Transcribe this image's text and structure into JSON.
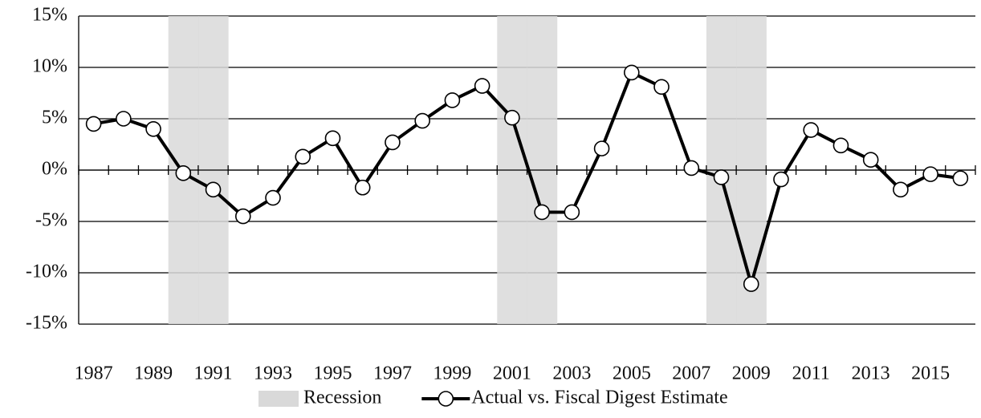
{
  "chart_data": {
    "type": "line",
    "categories": [
      "1987",
      null,
      "1989",
      null,
      "1991",
      null,
      "1993",
      null,
      "1995",
      null,
      "1997",
      null,
      "1999",
      null,
      "2001",
      null,
      "2003",
      null,
      "2005",
      null,
      "2007",
      null,
      "2009",
      null,
      "2011",
      null,
      "2013",
      null,
      "2015",
      null
    ],
    "series": [
      {
        "name": "Recession",
        "type": "band",
        "color": "#d9d9d9",
        "values": [
          false,
          false,
          false,
          true,
          true,
          false,
          false,
          false,
          false,
          false,
          false,
          false,
          false,
          false,
          true,
          true,
          false,
          false,
          false,
          false,
          false,
          true,
          true,
          false,
          false,
          false,
          false,
          false,
          false,
          false
        ]
      },
      {
        "name": "Actual vs. Fiscal Digest Estimate",
        "type": "line",
        "color": "#000000",
        "values": [
          4.5,
          5.0,
          4.0,
          -0.3,
          -1.9,
          -4.5,
          -2.7,
          1.3,
          3.1,
          -1.7,
          2.7,
          4.8,
          6.8,
          8.2,
          5.1,
          -4.1,
          -4.1,
          2.1,
          9.5,
          8.1,
          0.2,
          -0.7,
          -11.1,
          -0.9,
          3.9,
          2.4,
          1.0,
          -1.9,
          -0.4,
          -0.8
        ]
      }
    ],
    "ylim": [
      -15,
      15
    ],
    "yticks": [
      {
        "value": -15,
        "label": "-15%"
      },
      {
        "value": -10,
        "label": "-10%"
      },
      {
        "value": -5,
        "label": "-5%"
      },
      {
        "value": 0,
        "label": "0%"
      },
      {
        "value": 5,
        "label": "5%"
      },
      {
        "value": 10,
        "label": "10%"
      },
      {
        "value": 15,
        "label": "15%"
      }
    ],
    "grid": true,
    "legend": "bottom"
  }
}
